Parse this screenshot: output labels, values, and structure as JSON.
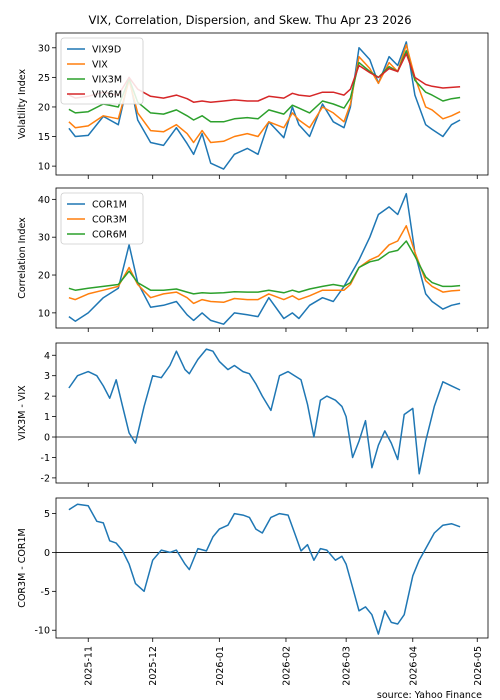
{
  "page": {
    "title": "VIX, Correlation, Dispersion, and Skew. Thu Apr 23 2026",
    "source": "source: Yahoo Finance"
  },
  "x_ticks": [
    "2025-11",
    "2025-12",
    "2026-01",
    "2026-02",
    "2026-03",
    "2026-04",
    "2026-05"
  ],
  "colors": {
    "blue": "#1f77b4",
    "orange": "#ff7f0e",
    "green": "#2ca02c",
    "red": "#d62728"
  },
  "chart_data": [
    {
      "type": "line",
      "ylabel": "Volatility Index",
      "ylim": [
        8.5,
        32.5
      ],
      "yticks": [
        10,
        15,
        20,
        25,
        30
      ],
      "legend": "top-left",
      "x": [
        "2025-10-23",
        "2025-10-26",
        "2025-11-01",
        "2025-11-08",
        "2025-11-15",
        "2025-11-20",
        "2025-11-24",
        "2025-11-30",
        "2025-12-06",
        "2025-12-12",
        "2025-12-17",
        "2025-12-20",
        "2025-12-24",
        "2025-12-28",
        "2026-01-03",
        "2026-01-08",
        "2026-01-14",
        "2026-01-19",
        "2026-01-24",
        "2026-01-31",
        "2026-02-04",
        "2026-02-07",
        "2026-02-12",
        "2026-02-18",
        "2026-02-23",
        "2026-02-28",
        "2026-03-03",
        "2026-03-07",
        "2026-03-12",
        "2026-03-16",
        "2026-03-21",
        "2026-03-25",
        "2026-03-29",
        "2026-04-02",
        "2026-04-07",
        "2026-04-10",
        "2026-04-15",
        "2026-04-19",
        "2026-04-23"
      ],
      "series": [
        {
          "name": "VIX9D",
          "color": "#1f77b4",
          "values": [
            16.4,
            15.0,
            15.2,
            18.4,
            17.0,
            25.0,
            17.8,
            14.0,
            13.5,
            16.5,
            13.8,
            12.0,
            15.5,
            10.5,
            9.5,
            12.0,
            13.0,
            12.0,
            17.5,
            14.8,
            20.0,
            17.0,
            15.0,
            20.5,
            17.5,
            16.5,
            20.0,
            30.0,
            28.0,
            24.0,
            28.5,
            27.0,
            31.0,
            22.0,
            17.0,
            16.2,
            15.0,
            17.0,
            17.8
          ]
        },
        {
          "name": "VIX",
          "color": "#ff7f0e",
          "values": [
            17.5,
            16.5,
            16.8,
            18.5,
            18.0,
            24.5,
            19.0,
            16.0,
            15.8,
            17.0,
            15.5,
            14.0,
            16.0,
            14.0,
            14.2,
            15.0,
            15.5,
            15.0,
            17.5,
            16.5,
            19.0,
            17.8,
            16.5,
            20.0,
            19.0,
            17.5,
            20.5,
            28.5,
            26.5,
            24.0,
            27.5,
            26.0,
            30.5,
            25.0,
            20.0,
            19.5,
            18.0,
            18.5,
            19.2
          ]
        },
        {
          "name": "VIX3M",
          "color": "#2ca02c",
          "values": [
            19.6,
            19.0,
            19.2,
            20.5,
            20.0,
            24.8,
            20.8,
            19.0,
            18.8,
            19.5,
            18.5,
            17.8,
            18.5,
            17.5,
            17.5,
            18.0,
            18.2,
            18.0,
            19.5,
            18.8,
            20.3,
            19.8,
            19.0,
            21.0,
            20.5,
            19.8,
            21.5,
            27.5,
            26.0,
            25.0,
            26.8,
            26.0,
            29.5,
            24.5,
            22.5,
            22.0,
            21.0,
            21.4,
            21.6
          ]
        },
        {
          "name": "VIX6M",
          "color": "#d62728",
          "values": [
            22.0,
            21.5,
            21.8,
            22.5,
            22.0,
            25.0,
            23.0,
            21.8,
            21.5,
            22.0,
            21.4,
            20.8,
            21.0,
            20.8,
            21.0,
            21.2,
            21.0,
            21.0,
            21.8,
            21.5,
            22.3,
            22.0,
            21.8,
            22.5,
            22.5,
            22.0,
            23.0,
            27.0,
            25.8,
            25.0,
            26.5,
            26.0,
            29.0,
            25.0,
            23.8,
            23.5,
            23.2,
            23.3,
            23.4
          ]
        }
      ]
    },
    {
      "type": "line",
      "ylabel": "Correlation Index",
      "ylim": [
        6.0,
        43.0
      ],
      "yticks": [
        10,
        20,
        30,
        40
      ],
      "legend": "top-left",
      "x": [
        "2025-10-23",
        "2025-10-26",
        "2025-11-01",
        "2025-11-08",
        "2025-11-15",
        "2025-11-20",
        "2025-11-24",
        "2025-11-30",
        "2025-12-06",
        "2025-12-12",
        "2025-12-17",
        "2025-12-20",
        "2025-12-24",
        "2025-12-28",
        "2026-01-03",
        "2026-01-08",
        "2026-01-14",
        "2026-01-19",
        "2026-01-24",
        "2026-01-31",
        "2026-02-04",
        "2026-02-07",
        "2026-02-12",
        "2026-02-18",
        "2026-02-23",
        "2026-02-28",
        "2026-03-03",
        "2026-03-07",
        "2026-03-12",
        "2026-03-16",
        "2026-03-21",
        "2026-03-25",
        "2026-03-29",
        "2026-04-02",
        "2026-04-07",
        "2026-04-10",
        "2026-04-15",
        "2026-04-19",
        "2026-04-23"
      ],
      "series": [
        {
          "name": "COR1M",
          "color": "#1f77b4",
          "values": [
            9.0,
            7.8,
            10.0,
            14.0,
            16.5,
            28.0,
            18.0,
            11.5,
            12.0,
            13.0,
            9.5,
            8.0,
            10.0,
            8.0,
            7.0,
            10.0,
            9.5,
            9.0,
            14.0,
            8.5,
            10.0,
            8.5,
            12.0,
            14.0,
            13.0,
            17.0,
            20.0,
            24.0,
            30.0,
            36.0,
            38.0,
            36.0,
            41.5,
            26.0,
            15.0,
            13.0,
            11.0,
            12.0,
            12.5
          ]
        },
        {
          "name": "COR3M",
          "color": "#ff7f0e",
          "values": [
            14.0,
            13.5,
            15.0,
            16.0,
            17.0,
            22.0,
            17.5,
            14.0,
            15.0,
            15.5,
            14.0,
            12.5,
            13.5,
            13.0,
            12.8,
            13.8,
            13.5,
            13.5,
            15.0,
            13.5,
            14.5,
            13.5,
            14.5,
            16.0,
            16.0,
            16.0,
            17.5,
            22.0,
            24.0,
            25.0,
            28.0,
            29.0,
            33.0,
            26.0,
            18.5,
            17.0,
            15.5,
            15.8,
            16.0
          ]
        },
        {
          "name": "COR6M",
          "color": "#2ca02c",
          "values": [
            16.5,
            16.0,
            16.5,
            17.0,
            17.5,
            21.0,
            18.0,
            16.0,
            16.0,
            16.3,
            15.5,
            15.0,
            15.3,
            15.2,
            15.3,
            15.6,
            15.5,
            15.5,
            16.0,
            15.3,
            16.0,
            15.5,
            16.3,
            17.0,
            17.5,
            17.0,
            18.0,
            22.0,
            23.5,
            24.0,
            26.0,
            26.5,
            29.0,
            25.0,
            19.5,
            18.0,
            17.0,
            17.0,
            17.2
          ]
        }
      ]
    },
    {
      "type": "line",
      "ylabel": "VIX3M - VIX",
      "ylim": [
        -2.25,
        4.6
      ],
      "yticks": [
        -2,
        -1,
        0,
        1,
        2,
        3,
        4
      ],
      "zero_line": true,
      "x": [
        "2025-10-23",
        "2025-10-27",
        "2025-11-01",
        "2025-11-05",
        "2025-11-08",
        "2025-11-11",
        "2025-11-14",
        "2025-11-17",
        "2025-11-20",
        "2025-11-23",
        "2025-11-27",
        "2025-12-01",
        "2025-12-05",
        "2025-12-09",
        "2025-12-12",
        "2025-12-16",
        "2025-12-18",
        "2025-12-22",
        "2025-12-26",
        "2025-12-29",
        "2026-01-01",
        "2026-01-05",
        "2026-01-08",
        "2026-01-12",
        "2026-01-15",
        "2026-01-18",
        "2026-01-21",
        "2026-01-25",
        "2026-01-29",
        "2026-02-02",
        "2026-02-05",
        "2026-02-08",
        "2026-02-11",
        "2026-02-14",
        "2026-02-17",
        "2026-02-20",
        "2026-02-24",
        "2026-02-27",
        "2026-03-01",
        "2026-03-04",
        "2026-03-07",
        "2026-03-10",
        "2026-03-13",
        "2026-03-16",
        "2026-03-19",
        "2026-03-22",
        "2026-03-25",
        "2026-03-28",
        "2026-04-01",
        "2026-04-04",
        "2026-04-07",
        "2026-04-11",
        "2026-04-15",
        "2026-04-19",
        "2026-04-23"
      ],
      "series": [
        {
          "name": "",
          "color": "#1f77b4",
          "values": [
            2.4,
            3.0,
            3.2,
            3.0,
            2.5,
            1.9,
            2.8,
            1.5,
            0.2,
            -0.3,
            1.5,
            3.0,
            2.9,
            3.5,
            4.2,
            3.3,
            3.1,
            3.8,
            4.3,
            4.2,
            3.7,
            3.3,
            3.5,
            3.2,
            3.1,
            2.6,
            2.0,
            1.3,
            3.0,
            3.2,
            3.0,
            2.8,
            1.6,
            0.0,
            1.8,
            2.0,
            1.8,
            1.5,
            1.0,
            -1.0,
            -0.2,
            0.8,
            -1.5,
            -0.4,
            0.3,
            -0.3,
            -1.1,
            1.1,
            1.4,
            -1.8,
            -0.2,
            1.5,
            2.7,
            2.5,
            2.3
          ]
        }
      ]
    },
    {
      "type": "line",
      "ylabel": "COR3M - COR1M",
      "ylim": [
        -11.0,
        7.0
      ],
      "yticks": [
        -10,
        -5,
        0,
        5
      ],
      "zero_line": true,
      "x": [
        "2025-10-23",
        "2025-10-27",
        "2025-11-01",
        "2025-11-05",
        "2025-11-08",
        "2025-11-11",
        "2025-11-14",
        "2025-11-17",
        "2025-11-20",
        "2025-11-23",
        "2025-11-27",
        "2025-12-01",
        "2025-12-05",
        "2025-12-09",
        "2025-12-12",
        "2025-12-16",
        "2025-12-18",
        "2025-12-22",
        "2025-12-26",
        "2025-12-29",
        "2026-01-01",
        "2026-01-05",
        "2026-01-08",
        "2026-01-12",
        "2026-01-15",
        "2026-01-18",
        "2026-01-21",
        "2026-01-25",
        "2026-01-29",
        "2026-02-02",
        "2026-02-05",
        "2026-02-08",
        "2026-02-11",
        "2026-02-14",
        "2026-02-17",
        "2026-02-20",
        "2026-02-24",
        "2026-02-27",
        "2026-03-01",
        "2026-03-04",
        "2026-03-07",
        "2026-03-10",
        "2026-03-13",
        "2026-03-16",
        "2026-03-19",
        "2026-03-22",
        "2026-03-25",
        "2026-03-28",
        "2026-04-01",
        "2026-04-04",
        "2026-04-07",
        "2026-04-11",
        "2026-04-15",
        "2026-04-19",
        "2026-04-23"
      ],
      "series": [
        {
          "name": "",
          "color": "#1f77b4",
          "values": [
            5.5,
            6.2,
            6.0,
            4.0,
            3.8,
            1.5,
            1.2,
            0.2,
            -1.5,
            -4.0,
            -5.0,
            -1.0,
            0.3,
            0.0,
            0.3,
            -1.5,
            -2.2,
            0.5,
            0.2,
            2.0,
            3.0,
            3.5,
            5.0,
            4.8,
            4.5,
            3.0,
            2.5,
            4.5,
            5.0,
            4.8,
            2.5,
            0.2,
            1.0,
            -1.0,
            0.5,
            0.3,
            -1.0,
            -0.5,
            -1.5,
            -4.5,
            -7.5,
            -7.0,
            -8.0,
            -10.5,
            -7.5,
            -9.0,
            -9.2,
            -8.0,
            -3.0,
            -1.0,
            0.5,
            2.5,
            3.5,
            3.7,
            3.3
          ]
        }
      ]
    }
  ]
}
